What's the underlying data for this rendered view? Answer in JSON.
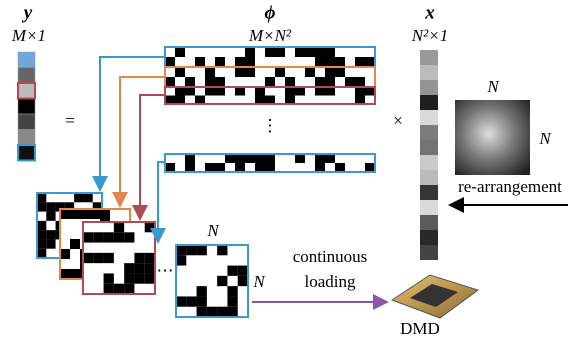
{
  "y_vector": {
    "symbol": "y",
    "size": "M×1"
  },
  "matrix": {
    "symbol": "ϕ",
    "size": "M×N²",
    "dots": "⋮"
  },
  "x_vector": {
    "symbol": "x",
    "size": "N²×1"
  },
  "equals": "=",
  "times": "×",
  "image": {
    "label_top": "N",
    "label_right": "N",
    "caption": "re-arrangement"
  },
  "patterns": {
    "dots": "⋯",
    "label_top": "N",
    "label_right": "N"
  },
  "loading": {
    "line1": "continuous",
    "line2": "loading"
  },
  "device": {
    "label": "DMD"
  }
}
